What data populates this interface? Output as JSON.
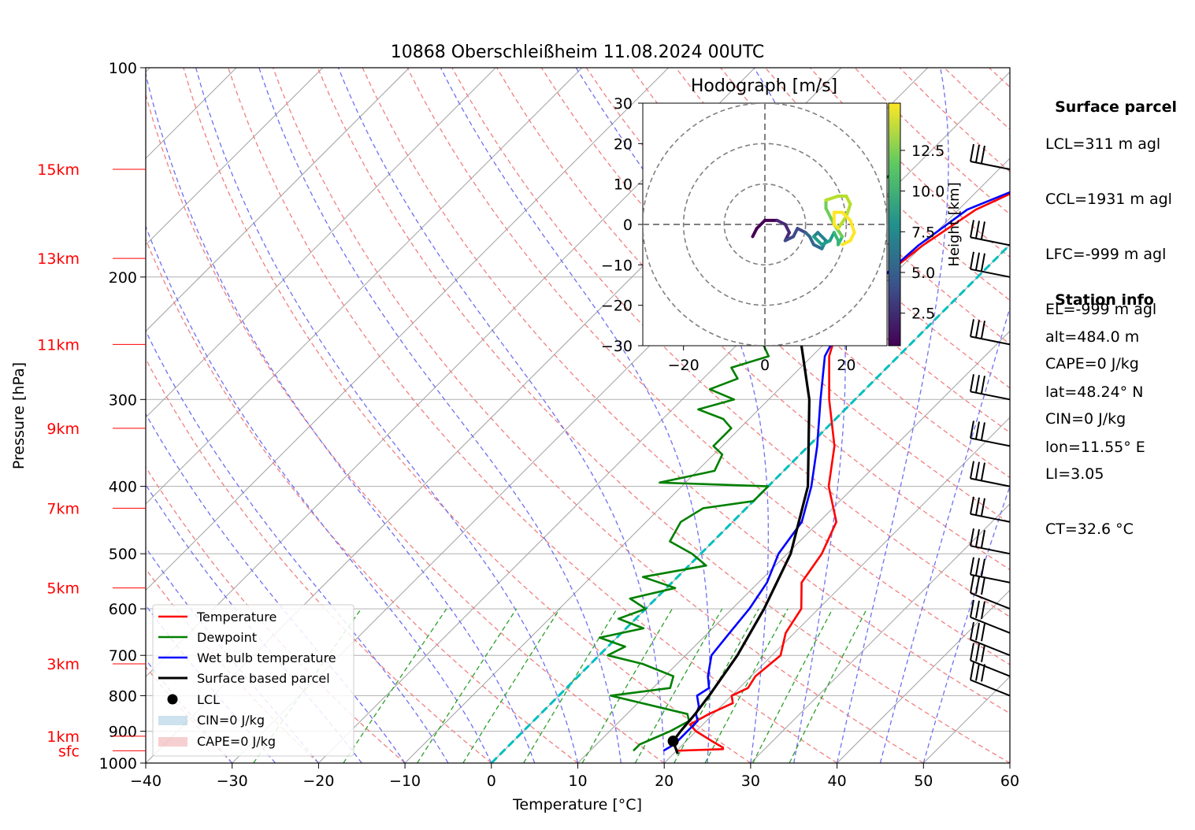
{
  "chart_data": {
    "type": "line",
    "title": "10868 Oberschleißheim 11.08.2024 00UTC",
    "xlabel": "Temperature [°C]",
    "ylabel": "Pressure [hPa]",
    "xlim": [
      -40,
      60
    ],
    "ylim": [
      1000,
      100
    ],
    "y_scale": "log",
    "x_ticks": [
      -40,
      -30,
      -20,
      -10,
      0,
      10,
      20,
      30,
      40,
      50,
      60
    ],
    "y_ticks": [
      1000,
      900,
      800,
      700,
      600,
      500,
      400,
      300,
      200,
      100
    ],
    "height_labels": [
      {
        "label": "sfc",
        "p": 960
      },
      {
        "label": "1km",
        "p": 915
      },
      {
        "label": "3km",
        "p": 720
      },
      {
        "label": "5km",
        "p": 560
      },
      {
        "label": "7km",
        "p": 430
      },
      {
        "label": "9km",
        "p": 330
      },
      {
        "label": "11km",
        "p": 250
      },
      {
        "label": "13km",
        "p": 188
      },
      {
        "label": "15km",
        "p": 140
      }
    ],
    "series": [
      {
        "name": "Temperature",
        "color": "#ff0000",
        "p": [
          960,
          955,
          950,
          930,
          900,
          880,
          850,
          820,
          800,
          780,
          750,
          700,
          650,
          600,
          550,
          500,
          450,
          400,
          350,
          300,
          260,
          230,
          210,
          200,
          180,
          160,
          145,
          140
        ],
        "t": [
          20,
          25.2,
          25,
          23,
          20,
          18.5,
          19.5,
          21,
          20,
          21,
          20.5,
          21,
          19,
          18,
          15,
          14,
          12,
          7,
          3,
          -3,
          -8,
          -11,
          -12,
          -11,
          -10,
          -8,
          -4,
          -2
        ]
      },
      {
        "name": "Dewpoint",
        "color": "#008000",
        "p": [
          960,
          940,
          920,
          900,
          870,
          850,
          800,
          780,
          750,
          720,
          700,
          680,
          660,
          640,
          620,
          600,
          580,
          560,
          540,
          520,
          500,
          480,
          450,
          430,
          420,
          400,
          395,
          380,
          360,
          350,
          330,
          320,
          310,
          300,
          290,
          280,
          270,
          260,
          250,
          240,
          230,
          220,
          210,
          205,
          200,
          195,
          190,
          180,
          170,
          160,
          150,
          145,
          140
        ],
        "t": [
          15,
          15,
          16,
          17,
          18,
          17,
          6,
          12,
          11,
          6,
          1,
          2,
          -2,
          2,
          -2,
          0,
          -3,
          1,
          -4,
          2,
          -1,
          -5,
          -6,
          -5,
          0,
          0,
          -13,
          -8,
          -9,
          -11,
          -11,
          -13,
          -17,
          -14,
          -18,
          -16,
          -18,
          -15,
          -17,
          -18,
          -19,
          -17,
          -16,
          -16,
          -29,
          -29,
          -28,
          -28,
          -27,
          -26,
          -23,
          -22,
          -22
        ]
      },
      {
        "name": "Wet bulb temperature",
        "color": "#0000ff",
        "p": [
          960,
          940,
          900,
          870,
          850,
          830,
          800,
          780,
          750,
          700,
          650,
          600,
          550,
          500,
          450,
          400,
          350,
          300,
          260,
          230,
          210,
          200,
          180,
          160,
          145,
          140
        ],
        "t": [
          18.5,
          19,
          19,
          19,
          18,
          17.5,
          16,
          16.5,
          15,
          13,
          12.5,
          12,
          11,
          9,
          8,
          5,
          1,
          -4,
          -8.5,
          -10.5,
          -12,
          -11,
          -10.5,
          -9,
          -4,
          -2
        ]
      },
      {
        "name": "Surface based parcel",
        "color": "#000000",
        "p": [
          970,
          950,
          930,
          900,
          850,
          800,
          700,
          600,
          500,
          400,
          300,
          250,
          200,
          140
        ],
        "t": [
          20.5,
          19.5,
          18.5,
          18.2,
          17.9,
          17.4,
          16,
          13.7,
          10.4,
          4.6,
          -5.3,
          -12.6,
          -22.9,
          -46
        ]
      }
    ],
    "lcl": {
      "name": "LCL",
      "p": 930,
      "t": 18.5
    },
    "cin_label": "CIN=0 J/kg",
    "cape_label": "CAPE=0 J/kg",
    "hodograph": {
      "title": "Hodograph [m/s]",
      "xlim": [
        -30,
        30
      ],
      "ylim": [
        -30,
        30
      ],
      "x_ticks": [
        -20,
        0,
        20
      ],
      "y_ticks": [
        -30,
        -20,
        -10,
        0,
        10,
        20,
        30
      ],
      "colorbar_label": "Height [km]",
      "colorbar_ticks": [
        2.5,
        5.0,
        7.5,
        10.0,
        12.5
      ],
      "u": [
        -3,
        -2,
        0,
        3,
        5,
        6,
        5,
        7,
        8,
        10,
        11,
        12,
        14,
        15,
        13,
        12,
        14,
        16,
        17,
        18,
        18,
        19,
        17,
        16,
        15,
        15,
        18,
        20,
        21,
        20,
        18,
        17,
        17,
        19,
        21,
        22,
        21,
        19
      ],
      "v": [
        -3,
        -1,
        1,
        1,
        0,
        -2,
        -4,
        -3,
        -1,
        -2,
        -3,
        -5,
        -6,
        -4,
        -2,
        -3,
        -5,
        -4,
        -2,
        -4,
        -5,
        -3,
        0,
        2,
        4,
        6,
        7,
        7,
        5,
        2,
        -1,
        0,
        3,
        3,
        1,
        -2,
        -4,
        -5
      ],
      "h": [
        0.5,
        1,
        1.5,
        2,
        2.5,
        3,
        3.5,
        4,
        4.5,
        5,
        5.5,
        6,
        6.5,
        7,
        7.5,
        8,
        8.5,
        9,
        9.5,
        10,
        10.5,
        11,
        11.5,
        12,
        12.3,
        12.6,
        12.9,
        13.2,
        13.5,
        13.8,
        14,
        14.2,
        14.4,
        14.6,
        14.8,
        15,
        15.2,
        15.4
      ]
    },
    "legend_position": "lower-left"
  },
  "legend": {
    "temperature": "Temperature",
    "dewpoint": "Dewpoint",
    "wetbulb": "Wet bulb temperature",
    "parcel": "Surface based parcel",
    "lcl": "LCL",
    "cin": "CIN=0 J/kg",
    "cape": "CAPE=0 J/kg"
  },
  "surface_parcel": {
    "heading": "Surface parcel",
    "lines": [
      "LCL=311 m agl",
      "CCL=1931 m agl",
      "LFC=-999 m agl",
      "EL=-999 m agl",
      "CAPE=0 J/kg",
      "CIN=0 J/kg",
      "LI=3.05",
      "CT=32.6 °C"
    ]
  },
  "station_info": {
    "heading": "Station info",
    "lines": [
      "alt=484.0 m",
      "lat=48.24° N",
      "lon=11.55° E"
    ]
  },
  "colors": {
    "temperature": "#ff0000",
    "dewpoint": "#008000",
    "wetbulb": "#0000ff",
    "parcel": "#000000",
    "freezing": "#00bfbf",
    "dry_adiabat": "#f08080",
    "moist_adiabat": "#7070f0",
    "mixing_ratio": "#2ca02c",
    "height_label": "#ff0000"
  }
}
